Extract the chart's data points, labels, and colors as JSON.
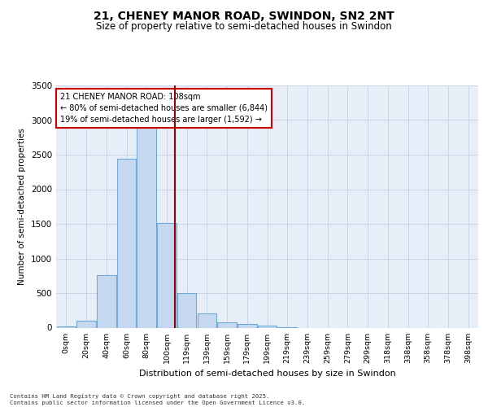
{
  "title1": "21, CHENEY MANOR ROAD, SWINDON, SN2 2NT",
  "title2": "Size of property relative to semi-detached houses in Swindon",
  "xlabel": "Distribution of semi-detached houses by size in Swindon",
  "ylabel": "Number of semi-detached properties",
  "categories": [
    "0sqm",
    "20sqm",
    "40sqm",
    "60sqm",
    "80sqm",
    "100sqm",
    "119sqm",
    "139sqm",
    "159sqm",
    "179sqm",
    "199sqm",
    "219sqm",
    "239sqm",
    "259sqm",
    "279sqm",
    "299sqm",
    "318sqm",
    "338sqm",
    "358sqm",
    "378sqm",
    "398sqm"
  ],
  "bar_heights": [
    20,
    100,
    760,
    2440,
    2900,
    1510,
    500,
    210,
    80,
    50,
    30,
    5,
    0,
    0,
    0,
    0,
    0,
    0,
    0,
    0,
    0
  ],
  "bar_color": "#c5d8f0",
  "bar_edge_color": "#6aaad4",
  "vline_color": "#8b0000",
  "annotation_box_edge_color": "#cc0000",
  "ylim": [
    0,
    3500
  ],
  "yticks": [
    0,
    500,
    1000,
    1500,
    2000,
    2500,
    3000,
    3500
  ],
  "grid_color": "#c8d4e8",
  "bg_color": "#e8eef8",
  "footnote1": "Contains HM Land Registry data © Crown copyright and database right 2025.",
  "footnote2": "Contains public sector information licensed under the Open Government Licence v3.0.",
  "ann_line1": "21 CHENEY MANOR ROAD: 108sqm",
  "ann_line2": "← 80% of semi-detached houses are smaller (6,844)",
  "ann_line3": "19% of semi-detached houses are larger (1,592) →"
}
